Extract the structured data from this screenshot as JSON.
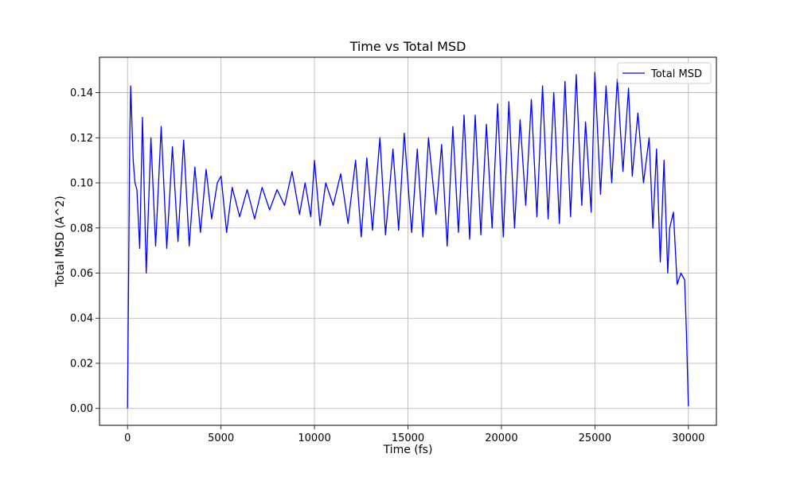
{
  "chart_data": {
    "type": "line",
    "title": "Time vs Total MSD",
    "xlabel": "Time (fs)",
    "ylabel": "Total MSD (A^2)",
    "xlim": [
      -1500,
      31500
    ],
    "ylim": [
      -0.0075,
      0.1557
    ],
    "xticks": [
      0,
      5000,
      10000,
      15000,
      20000,
      25000,
      30000
    ],
    "xtick_labels": [
      "0",
      "5000",
      "10000",
      "15000",
      "20000",
      "25000",
      "30000"
    ],
    "yticks": [
      0.0,
      0.02,
      0.04,
      0.06,
      0.08,
      0.1,
      0.12,
      0.14
    ],
    "ytick_labels": [
      "0.00",
      "0.02",
      "0.04",
      "0.06",
      "0.08",
      "0.10",
      "0.12",
      "0.14"
    ],
    "grid": true,
    "legend_position": "top-right",
    "series": [
      {
        "name": "Total MSD",
        "color": "#0000ff",
        "x": [
          0,
          60,
          120,
          170,
          300,
          400,
          500,
          650,
          800,
          1000,
          1250,
          1500,
          1800,
          2100,
          2400,
          2700,
          3000,
          3300,
          3600,
          3900,
          4200,
          4500,
          4800,
          5000,
          5300,
          5600,
          6000,
          6400,
          6800,
          7200,
          7600,
          8000,
          8400,
          8800,
          9200,
          9500,
          9800,
          10000,
          10300,
          10600,
          11000,
          11400,
          11800,
          12200,
          12500,
          12800,
          13100,
          13500,
          13800,
          14200,
          14500,
          14800,
          15200,
          15500,
          15800,
          16100,
          16500,
          16800,
          17100,
          17400,
          17700,
          18000,
          18300,
          18600,
          18900,
          19200,
          19500,
          19800,
          20100,
          20400,
          20700,
          21000,
          21300,
          21600,
          21900,
          22200,
          22500,
          22800,
          23100,
          23400,
          23700,
          24000,
          24300,
          24500,
          24800,
          25000,
          25300,
          25600,
          25900,
          26200,
          26500,
          26800,
          27000,
          27300,
          27600,
          27900,
          28100,
          28300,
          28500,
          28700,
          28900,
          29000,
          29200,
          29400,
          29600,
          29800,
          29900,
          30000
        ],
        "y": [
          0.0,
          0.06,
          0.12,
          0.143,
          0.11,
          0.1,
          0.097,
          0.071,
          0.129,
          0.06,
          0.12,
          0.072,
          0.125,
          0.071,
          0.116,
          0.074,
          0.119,
          0.072,
          0.107,
          0.078,
          0.106,
          0.084,
          0.1,
          0.103,
          0.078,
          0.098,
          0.085,
          0.097,
          0.084,
          0.098,
          0.088,
          0.097,
          0.09,
          0.105,
          0.086,
          0.1,
          0.085,
          0.11,
          0.081,
          0.1,
          0.09,
          0.104,
          0.082,
          0.11,
          0.076,
          0.111,
          0.079,
          0.12,
          0.077,
          0.115,
          0.079,
          0.122,
          0.078,
          0.115,
          0.076,
          0.12,
          0.086,
          0.117,
          0.072,
          0.125,
          0.078,
          0.13,
          0.075,
          0.13,
          0.077,
          0.126,
          0.08,
          0.135,
          0.076,
          0.136,
          0.08,
          0.128,
          0.09,
          0.137,
          0.085,
          0.143,
          0.084,
          0.14,
          0.082,
          0.145,
          0.085,
          0.148,
          0.09,
          0.127,
          0.087,
          0.149,
          0.095,
          0.143,
          0.1,
          0.146,
          0.105,
          0.142,
          0.103,
          0.131,
          0.1,
          0.12,
          0.08,
          0.115,
          0.065,
          0.11,
          0.06,
          0.08,
          0.087,
          0.055,
          0.06,
          0.057,
          0.033,
          0.001
        ]
      }
    ]
  }
}
